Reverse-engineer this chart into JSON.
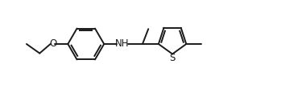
{
  "bg_color": "#ffffff",
  "line_color": "#1a1a1a",
  "line_width": 1.4,
  "text_color": "#1a1a1a",
  "font_size": 8.5,
  "figsize": [
    3.8,
    1.1
  ],
  "dpi": 100,
  "xlim": [
    0,
    10.5
  ],
  "ylim": [
    0,
    2.9
  ]
}
